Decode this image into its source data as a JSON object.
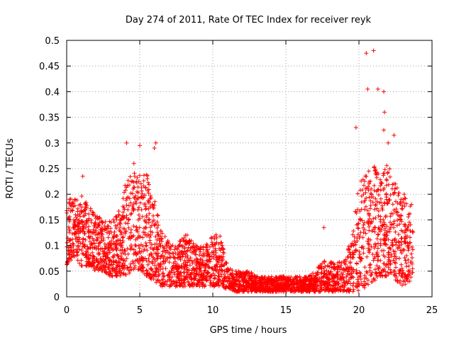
{
  "chart_data": {
    "type": "scatter",
    "title": "Day 274 of 2011, Rate Of TEC Index for receiver reyk",
    "xlabel": "GPS time / hours",
    "ylabel": "ROTI / TECUs",
    "xlim": [
      0,
      25
    ],
    "ylim": [
      0,
      0.5
    ],
    "grid": true,
    "xticks": [
      0,
      5,
      10,
      15,
      20,
      25
    ],
    "xtick_labels": [
      "0",
      "5",
      "10",
      "15",
      "20",
      "25"
    ],
    "yticks": [
      0,
      0.05,
      0.1,
      0.15,
      0.2,
      0.25,
      0.3,
      0.35,
      0.4,
      0.45,
      0.5
    ],
    "ytick_labels": [
      "0",
      "0.05",
      "0.1",
      "0.15",
      "0.2",
      "0.25",
      "0.3",
      "0.35",
      "0.4",
      "0.45",
      "0.5"
    ],
    "series": [
      {
        "name": "ROTI",
        "color": "#ff0000",
        "marker": "plus",
        "envelope": {
          "hours": [
            0,
            0.5,
            1,
            1.5,
            2,
            2.5,
            3,
            3.5,
            4,
            4.5,
            5,
            5.5,
            6,
            6.5,
            7,
            7.5,
            8,
            8.5,
            9,
            9.5,
            10,
            10.5,
            11,
            11.5,
            12,
            12.5,
            13,
            13.5,
            14,
            14.5,
            15,
            15.5,
            16,
            16.5,
            17,
            17.5,
            18,
            18.5,
            19,
            19.5,
            20,
            20.5,
            21,
            21.5,
            22,
            22.5,
            23,
            23.5,
            23.7
          ],
          "low": [
            0.06,
            0.08,
            0.06,
            0.06,
            0.05,
            0.05,
            0.04,
            0.04,
            0.04,
            0.05,
            0.05,
            0.04,
            0.03,
            0.02,
            0.02,
            0.02,
            0.02,
            0.02,
            0.02,
            0.02,
            0.02,
            0.02,
            0.015,
            0.01,
            0.01,
            0.01,
            0.01,
            0.01,
            0.01,
            0.01,
            0.01,
            0.01,
            0.01,
            0.01,
            0.01,
            0.01,
            0.01,
            0.01,
            0.01,
            0.01,
            0.01,
            0.02,
            0.03,
            0.04,
            0.04,
            0.03,
            0.02,
            0.03,
            0.05
          ],
          "high": [
            0.2,
            0.19,
            0.2,
            0.18,
            0.16,
            0.15,
            0.15,
            0.16,
            0.22,
            0.25,
            0.24,
            0.24,
            0.2,
            0.13,
            0.11,
            0.1,
            0.13,
            0.11,
            0.1,
            0.1,
            0.12,
            0.13,
            0.06,
            0.05,
            0.05,
            0.05,
            0.04,
            0.04,
            0.04,
            0.04,
            0.04,
            0.04,
            0.04,
            0.04,
            0.05,
            0.07,
            0.07,
            0.07,
            0.07,
            0.12,
            0.22,
            0.26,
            0.26,
            0.24,
            0.26,
            0.22,
            0.2,
            0.18,
            0.16
          ]
        },
        "outliers": [
          {
            "x": 0.2,
            "y": 0.19
          },
          {
            "x": 1.1,
            "y": 0.235
          },
          {
            "x": 4.1,
            "y": 0.3
          },
          {
            "x": 4.6,
            "y": 0.26
          },
          {
            "x": 5.0,
            "y": 0.295
          },
          {
            "x": 6.0,
            "y": 0.29
          },
          {
            "x": 6.1,
            "y": 0.3
          },
          {
            "x": 17.6,
            "y": 0.135
          },
          {
            "x": 19.8,
            "y": 0.33
          },
          {
            "x": 20.5,
            "y": 0.475
          },
          {
            "x": 20.6,
            "y": 0.405
          },
          {
            "x": 21.0,
            "y": 0.48
          },
          {
            "x": 21.3,
            "y": 0.405
          },
          {
            "x": 21.7,
            "y": 0.4
          },
          {
            "x": 21.75,
            "y": 0.36
          },
          {
            "x": 21.7,
            "y": 0.325
          },
          {
            "x": 22.0,
            "y": 0.3
          },
          {
            "x": 22.4,
            "y": 0.315
          },
          {
            "x": 22.5,
            "y": 0.22
          },
          {
            "x": 23.1,
            "y": 0.2
          },
          {
            "x": 23.6,
            "y": 0.18
          }
        ]
      }
    ]
  }
}
